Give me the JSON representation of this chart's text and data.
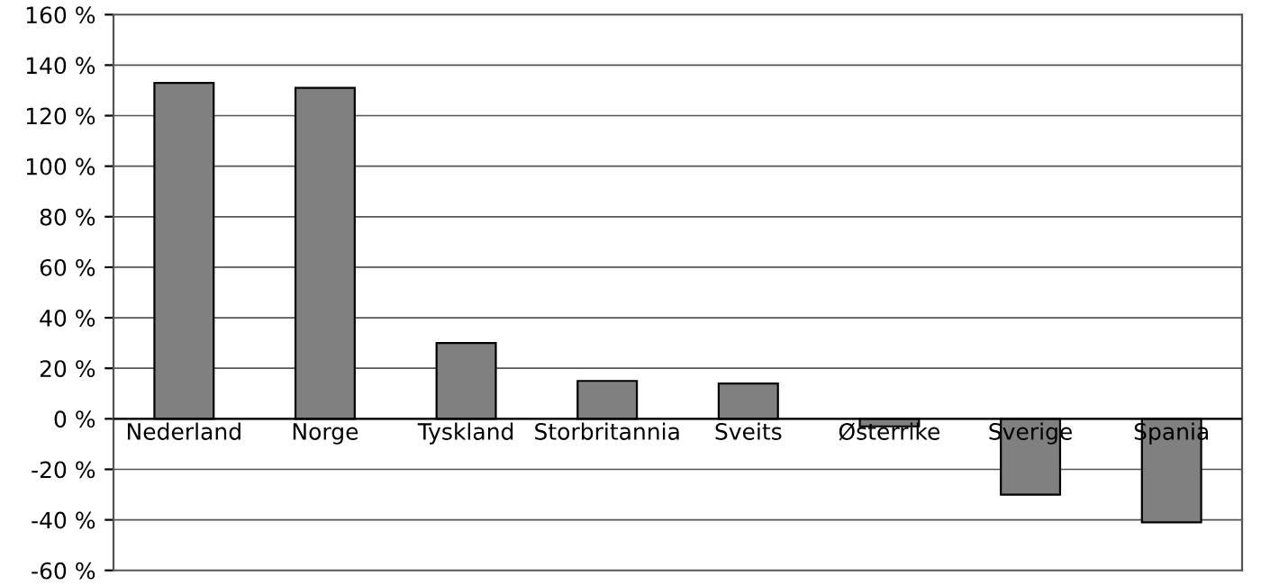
{
  "chart_data": {
    "type": "bar",
    "categories": [
      "Nederland",
      "Norge",
      "Tyskland",
      "Storbritannia",
      "Sveits",
      "Østerrike",
      "Sverige",
      "Spania"
    ],
    "values": [
      133,
      131,
      30,
      15,
      14,
      -3,
      -30,
      -41
    ],
    "color": "#808080",
    "ylim": [
      -60,
      160
    ],
    "yticks": [
      {
        "value": -60,
        "label": "-60 %"
      },
      {
        "value": -40,
        "label": "-40 %"
      },
      {
        "value": -20,
        "label": "-20 %"
      },
      {
        "value": 0,
        "label": "0 %"
      },
      {
        "value": 20,
        "label": "20 %"
      },
      {
        "value": 40,
        "label": "40 %"
      },
      {
        "value": 60,
        "label": "60 %"
      },
      {
        "value": 80,
        "label": "80 %"
      },
      {
        "value": 100,
        "label": "100 %"
      },
      {
        "value": 120,
        "label": "120 %"
      },
      {
        "value": 140,
        "label": "140 %"
      },
      {
        "value": 160,
        "label": "160 %"
      }
    ],
    "grid": "y"
  }
}
